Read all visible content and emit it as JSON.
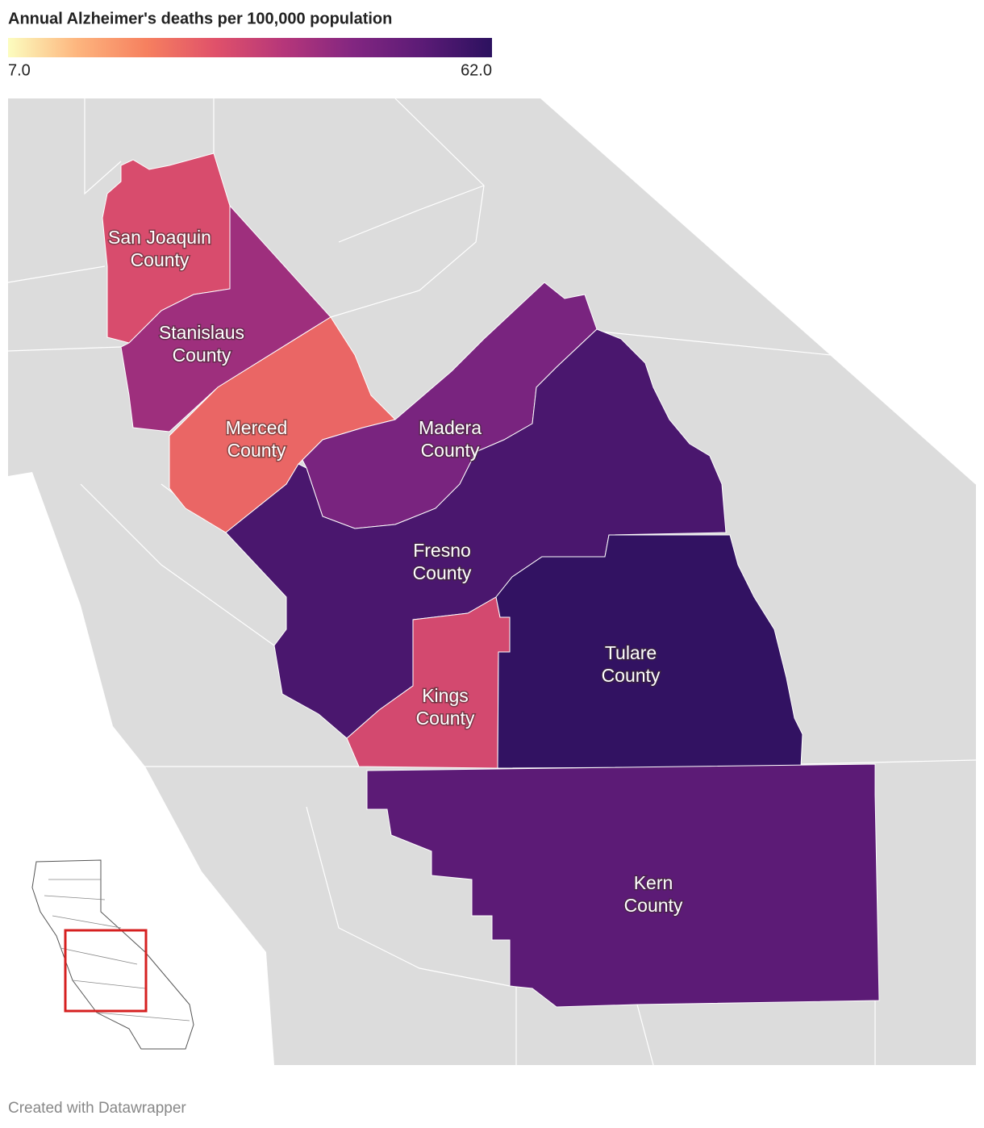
{
  "chart_data": {
    "type": "choropleth",
    "title": "Annual Alzheimer's deaths per 100,000 population",
    "colors": [
      "#fcfdbf",
      "#fdb57e",
      "#f6805f",
      "#e0516a",
      "#b5367a",
      "#822681",
      "#5b1b76",
      "#2c115f"
    ],
    "colorlim": [
      7,
      62
    ],
    "colorticks": [
      {
        "value": 7,
        "label": "7.0"
      },
      {
        "value": 62,
        "label": "62.0"
      }
    ],
    "regions": [
      {
        "label": [
          "San Joaquin",
          "County"
        ],
        "value": 32
      },
      {
        "label": [
          "Stanislaus",
          "County"
        ],
        "value": 42
      },
      {
        "label": [
          "Merced",
          "County"
        ],
        "value": 27
      },
      {
        "label": [
          "Madera",
          "County"
        ],
        "value": 48
      },
      {
        "label": [
          "Fresno",
          "County"
        ],
        "value": 57
      },
      {
        "label": [
          "Kings",
          "County"
        ],
        "value": 33
      },
      {
        "label": [
          "Tulare",
          "County"
        ],
        "value": 61
      },
      {
        "label": [
          "Kern",
          "County"
        ],
        "value": 54
      }
    ]
  },
  "footer": "Created with Datawrapper"
}
